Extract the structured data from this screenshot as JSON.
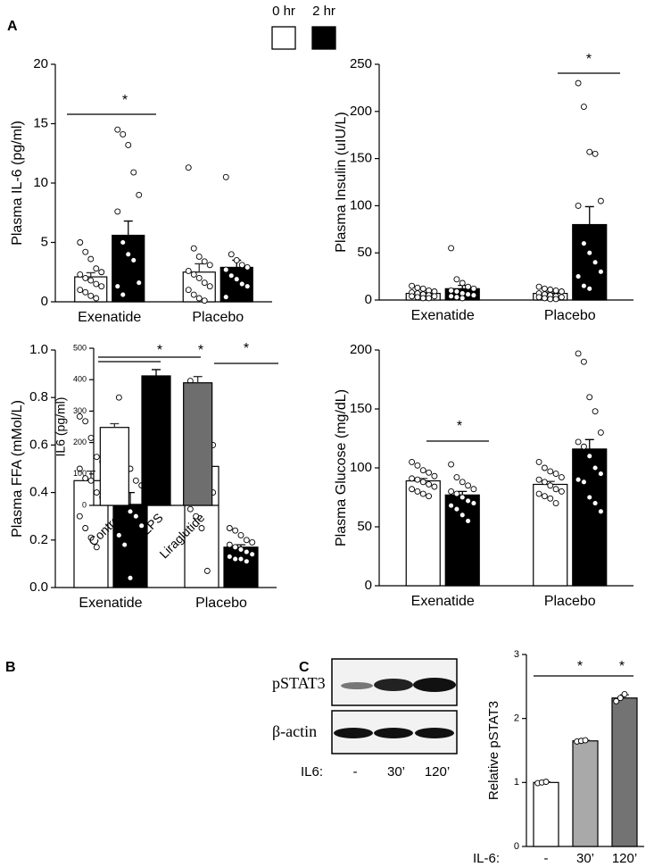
{
  "panel_labels": [
    "A",
    "B",
    "C"
  ],
  "blot": {
    "rows": [
      "pSTAT3",
      "β-actin"
    ],
    "xlabel": "IL6:",
    "lanes": [
      "-",
      "30’",
      "120’"
    ]
  },
  "chart_data": [
    {
      "type": "bar",
      "ylabel": "Plasma IL-6 (pg/ml)",
      "categories": [
        "Exenatide",
        "Placebo"
      ],
      "ylim": [
        0,
        20
      ],
      "yticks": [
        0,
        5,
        10,
        15,
        20
      ],
      "annotations": [
        "*"
      ],
      "series": [
        {
          "name": "0 hr",
          "color": "#ffffff",
          "values": [
            2.1,
            2.5
          ],
          "errors": [
            0.35,
            0.7
          ],
          "points": [
            [
              5.0,
              4.2,
              3.6,
              2.8,
              2.5,
              2.3,
              2.0,
              1.8,
              1.5,
              1.3,
              1.0,
              0.8,
              0.5,
              0.3
            ],
            [
              11.3,
              4.5,
              3.8,
              3.4,
              3.1,
              2.6,
              2.3,
              2.0,
              1.6,
              1.3,
              1.0,
              0.6,
              0.3,
              0.1
            ]
          ]
        },
        {
          "name": "2 hr",
          "color": "#000000",
          "values": [
            5.6,
            2.9
          ],
          "errors": [
            1.2,
            0.6
          ],
          "points": [
            [
              14.5,
              14.1,
              13.2,
              10.9,
              9.0,
              7.6,
              5.0,
              4.0,
              3.5,
              1.6,
              1.3,
              0.6
            ],
            [
              10.5,
              4.0,
              3.5,
              3.1,
              2.9,
              2.7,
              2.2,
              1.9,
              1.5,
              1.3,
              0.4
            ]
          ]
        }
      ]
    },
    {
      "type": "bar",
      "ylabel": "Plasma Insulin (uIU/L)",
      "categories": [
        "Exenatide",
        "Placebo"
      ],
      "ylim": [
        0,
        250
      ],
      "yticks": [
        0,
        50,
        100,
        150,
        200,
        250
      ],
      "annotations": [
        "*"
      ],
      "series": [
        {
          "name": "0 hr",
          "color": "#ffffff",
          "values": [
            7,
            7
          ],
          "errors": [
            1.2,
            1.5
          ],
          "points": [
            [
              15,
              13,
              12,
              10,
              9,
              8,
              7,
              6,
              5,
              4,
              4,
              3,
              2,
              2
            ],
            [
              14,
              12,
              11,
              10,
              9,
              7,
              6,
              5,
              4,
              3,
              3,
              2,
              1,
              1
            ]
          ]
        },
        {
          "name": "2 hr",
          "color": "#000000",
          "values": [
            12,
            80
          ],
          "errors": [
            3.5,
            19
          ],
          "points": [
            [
              55,
              22,
              18,
              14,
              12,
              10,
              9,
              7,
              6,
              5,
              4,
              3,
              2
            ],
            [
              230,
              205,
              157,
              155,
              105,
              100,
              60,
              50,
              40,
              30,
              25,
              15,
              12
            ]
          ]
        }
      ]
    },
    {
      "type": "bar",
      "ylabel": "Plasma FFA (mMol/L)",
      "categories": [
        "Exenatide",
        "Placebo"
      ],
      "ylim": [
        0,
        1.0
      ],
      "yticks": [
        {
          "value": 0,
          "label": "0.0"
        },
        0.2,
        0.4,
        0.6,
        0.8,
        {
          "value": 1,
          "label": "1.0"
        }
      ],
      "annotations": [
        "*"
      ],
      "series": [
        {
          "name": "0 hr",
          "color": "#ffffff",
          "values": [
            0.45,
            0.51
          ],
          "errors": [
            0.04,
            0.04
          ],
          "points": [
            [
              0.72,
              0.7,
              0.63,
              0.55,
              0.53,
              0.5,
              0.46,
              0.45,
              0.4,
              0.38,
              0.3,
              0.25,
              0.21,
              0.17
            ],
            [
              0.87,
              0.7,
              0.67,
              0.62,
              0.6,
              0.56,
              0.52,
              0.5,
              0.45,
              0.4,
              0.33,
              0.3,
              0.25,
              0.07
            ]
          ]
        },
        {
          "name": "2 hr",
          "color": "#000000",
          "values": [
            0.35,
            0.17
          ],
          "errors": [
            0.05,
            0.01
          ],
          "points": [
            [
              0.8,
              0.59,
              0.5,
              0.45,
              0.43,
              0.4,
              0.36,
              0.32,
              0.3,
              0.26,
              0.22,
              0.18,
              0.04
            ],
            [
              0.25,
              0.24,
              0.22,
              0.2,
              0.19,
              0.18,
              0.17,
              0.16,
              0.15,
              0.14,
              0.13,
              0.12,
              0.12,
              0.11
            ]
          ]
        }
      ]
    },
    {
      "type": "bar",
      "ylabel": "Plasma Glucose (mg/dL)",
      "categories": [
        "Exenatide",
        "Placebo"
      ],
      "ylim": [
        0,
        200
      ],
      "yticks": [
        0,
        50,
        100,
        150,
        200
      ],
      "annotations": [
        "*"
      ],
      "series": [
        {
          "name": "0 hr",
          "color": "#ffffff",
          "values": [
            89,
            86
          ],
          "errors": [
            2,
            2.5
          ],
          "points": [
            [
              105,
              102,
              98,
              96,
              93,
              91,
              90,
              88,
              86,
              84,
              82,
              80,
              78,
              76
            ],
            [
              105,
              100,
              97,
              95,
              92,
              90,
              88,
              85,
              82,
              80,
              78,
              76,
              74,
              70
            ]
          ]
        },
        {
          "name": "2 hr",
          "color": "#000000",
          "values": [
            77,
            116
          ],
          "errors": [
            3,
            8
          ],
          "points": [
            [
              103,
              92,
              88,
              85,
              82,
              80,
              78,
              75,
              72,
              70,
              68,
              65,
              60,
              55
            ],
            [
              197,
              190,
              160,
              148,
              130,
              122,
              118,
              110,
              100,
              95,
              90,
              88,
              75,
              70,
              63
            ]
          ]
        }
      ]
    },
    {
      "type": "bar",
      "ylabel": "IL6 (pg/ml)",
      "categories": [
        "Control",
        "LPS",
        "Liraglutide"
      ],
      "ylim": [
        0,
        500
      ],
      "yticks": [
        0,
        100,
        200,
        300,
        400,
        500
      ],
      "annotations": [
        "*",
        "*"
      ],
      "series": [
        {
          "colors": [
            "#ffffff",
            "#000000",
            "#6e6e6e"
          ],
          "values": [
            248,
            412,
            390
          ],
          "errors": [
            12,
            20,
            20
          ]
        }
      ]
    },
    {
      "type": "bar",
      "ylabel": "Relative pSTAT3",
      "xlabel": "IL-6:",
      "categories": [
        "-",
        "30’",
        "120’"
      ],
      "ylim": [
        0,
        3
      ],
      "yticks": [
        0,
        1,
        2,
        3
      ],
      "annotations": [
        "*",
        "*"
      ],
      "series": [
        {
          "colors": [
            "#ffffff",
            "#a9a9a9",
            "#737373"
          ],
          "values": [
            1.0,
            1.65,
            2.32
          ],
          "errors": [
            0.01,
            0.01,
            0.05
          ],
          "points": [
            [
              0.99,
              1.0,
              1.01
            ],
            [
              1.64,
              1.65,
              1.66
            ],
            [
              2.27,
              2.32,
              2.38
            ]
          ]
        }
      ]
    }
  ]
}
